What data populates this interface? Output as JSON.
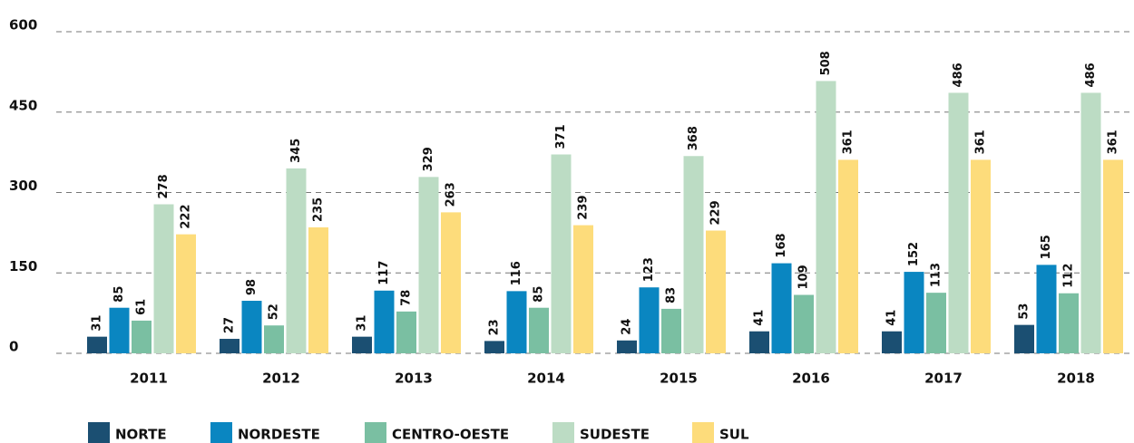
{
  "chart_data": {
    "type": "bar",
    "categories": [
      "2011",
      "2012",
      "2013",
      "2014",
      "2015",
      "2016",
      "2017",
      "2018"
    ],
    "series": [
      {
        "name": "NORTE",
        "color": "#1b4f72",
        "values": [
          31,
          27,
          31,
          23,
          24,
          41,
          41,
          53
        ]
      },
      {
        "name": "NORDESTE",
        "color": "#0a86c1",
        "values": [
          85,
          98,
          117,
          116,
          123,
          168,
          152,
          165
        ]
      },
      {
        "name": "CENTRO-OESTE",
        "color": "#7abfa2",
        "values": [
          61,
          52,
          78,
          85,
          83,
          109,
          113,
          112
        ]
      },
      {
        "name": "SUDESTE",
        "color": "#bcdcc4",
        "values": [
          278,
          345,
          329,
          371,
          368,
          508,
          486,
          486
        ]
      },
      {
        "name": "SUL",
        "color": "#fddc7b",
        "values": [
          222,
          235,
          263,
          239,
          229,
          361,
          361,
          361
        ]
      }
    ],
    "ylim": [
      0,
      600
    ],
    "yticks": [
      0,
      150,
      300,
      450,
      600
    ],
    "grid": true,
    "legend": "bottom"
  }
}
